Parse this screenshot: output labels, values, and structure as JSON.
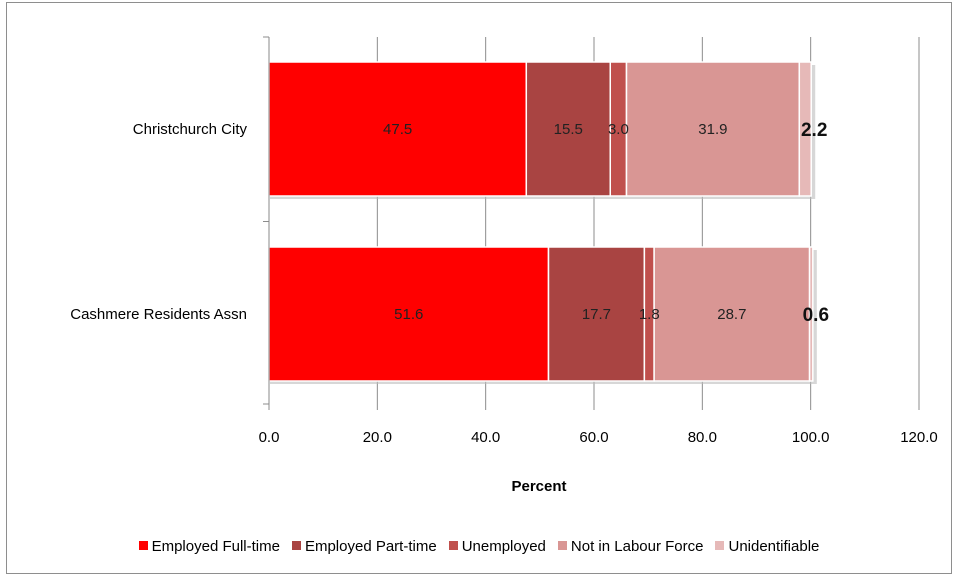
{
  "chart_data": {
    "type": "bar",
    "orientation": "horizontal",
    "stacked": true,
    "categories": [
      "Christchurch City",
      "Cashmere Residents Assn"
    ],
    "series": [
      {
        "name": "Employed Full-time",
        "values": [
          47.5,
          51.6
        ],
        "color": "#ff0000"
      },
      {
        "name": "Employed Part-time",
        "values": [
          15.5,
          17.7
        ],
        "color": "#a94442"
      },
      {
        "name": "Unemployed",
        "values": [
          3.0,
          1.8
        ],
        "color": "#c0504d"
      },
      {
        "name": "Not in Labour Force",
        "values": [
          31.9,
          28.7
        ],
        "color": "#d99694"
      },
      {
        "name": "Unidentifiable",
        "values": [
          2.2,
          0.6
        ],
        "color": "#e6b9b8"
      }
    ],
    "data_labels": [
      [
        "47.5",
        "15.5",
        "3.0",
        "31.9",
        "2.2"
      ],
      [
        "51.6",
        "17.7",
        "1.8",
        "28.7",
        "0.6"
      ]
    ],
    "xlabel": "Percent",
    "ylabel": "",
    "xlim": [
      0,
      120
    ],
    "xticks": [
      "0.0",
      "20.0",
      "40.0",
      "60.0",
      "80.0",
      "100.0",
      "120.0"
    ],
    "grid": "vertical",
    "legend": "bottom"
  }
}
